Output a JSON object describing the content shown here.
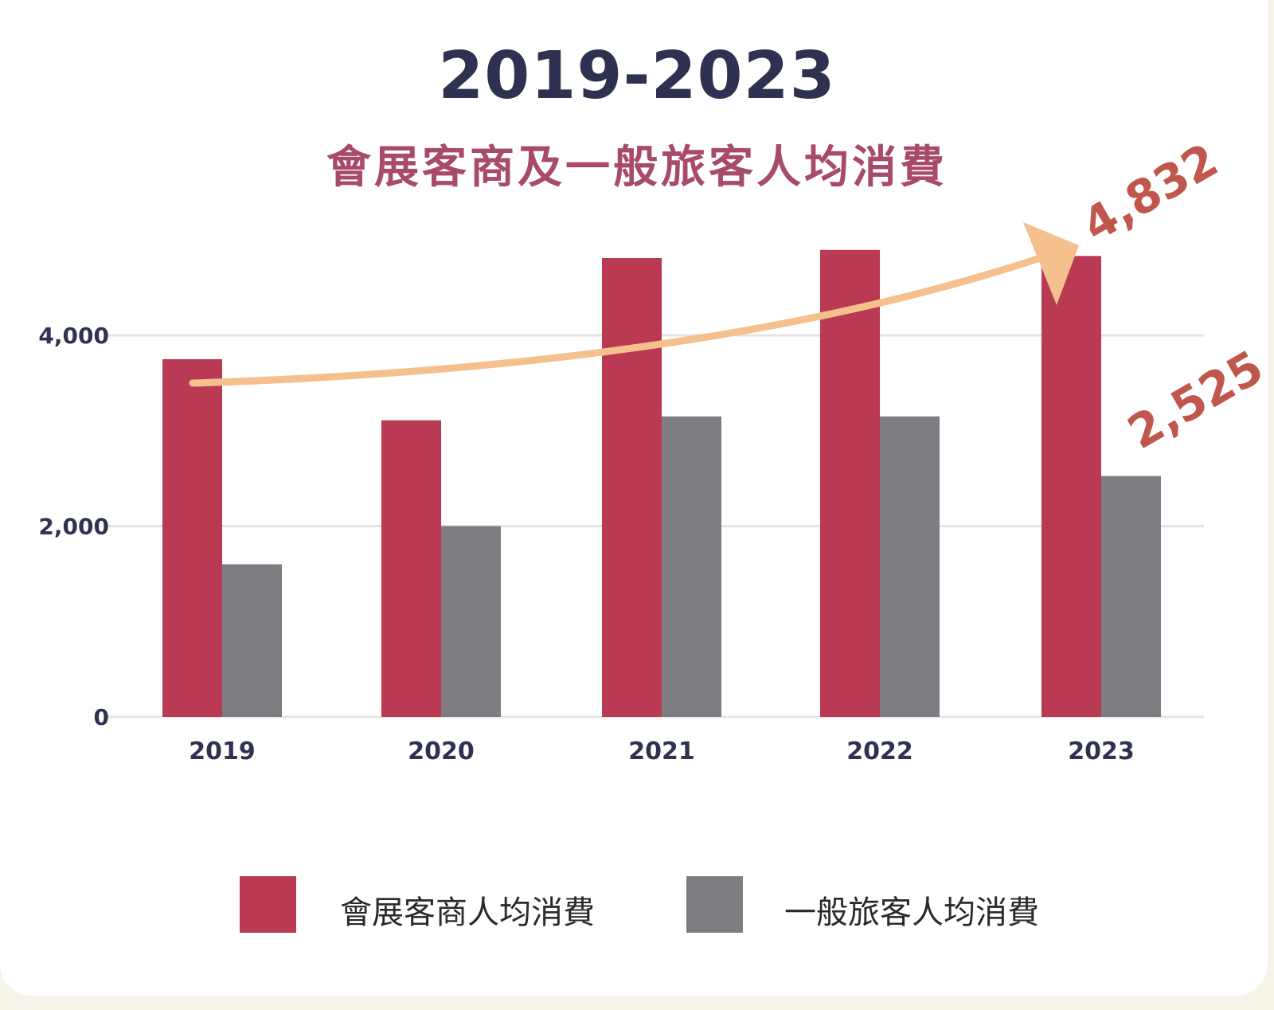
{
  "chart_data": {
    "type": "bar",
    "title": "2019-2023",
    "subtitle": "會展客商及一般旅客人均消費",
    "categories": [
      "2019",
      "2020",
      "2021",
      "2022",
      "2023"
    ],
    "series": [
      {
        "name": "會展客商人均消費",
        "color": "#b93a52",
        "values": [
          3750,
          3110,
          4810,
          4895,
          4832
        ]
      },
      {
        "name": "一般旅客人均消費",
        "color": "#7d7d82",
        "values": [
          1600,
          2000,
          3150,
          3150,
          2525
        ]
      }
    ],
    "ylim": [
      0,
      5000
    ],
    "yticks": [
      0,
      2000,
      4000
    ],
    "ytick_labels": [
      "0",
      "2,000",
      "4,000"
    ],
    "grid": true,
    "legend_position": "bottom",
    "annotations": [
      {
        "text": "4,832",
        "series": 0,
        "category": "2023"
      },
      {
        "text": "2,525",
        "series": 1,
        "category": "2023"
      }
    ],
    "trend_arrow_color": "#f5c08e",
    "annotation_color": "#c0574c"
  }
}
